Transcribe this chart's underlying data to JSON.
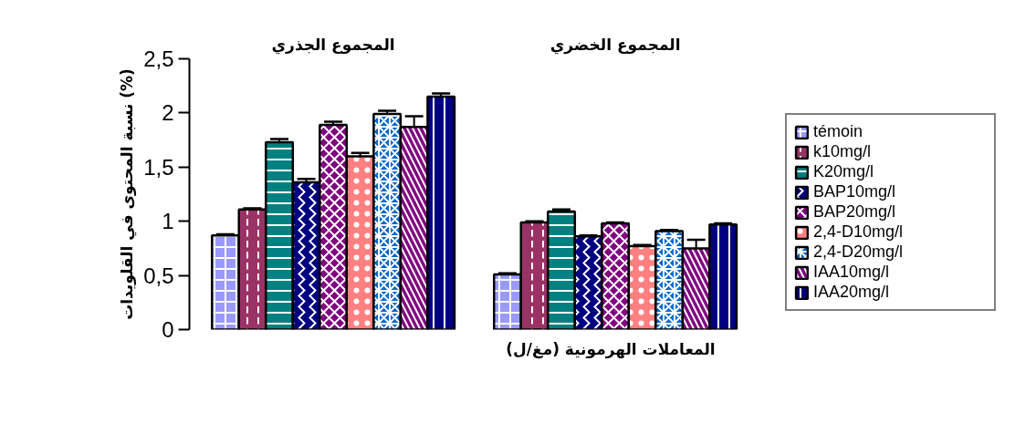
{
  "chart_data": {
    "type": "bar",
    "ylabel": "نسبة المحتوى في القلويدات (%)",
    "xlabel": "المعاملات الهرمونية (مغ/ل)",
    "categories": [
      "المجموع الجذري",
      "المجموع الخضري"
    ],
    "series": [
      {
        "name": "témoin",
        "color": "#9999ff",
        "values": [
          0.87,
          0.51
        ],
        "errors": [
          0.01,
          0.01
        ]
      },
      {
        "name": "k10mg/l",
        "color": "#993366",
        "values": [
          1.11,
          0.99
        ],
        "errors": [
          0.01,
          0.01
        ]
      },
      {
        "name": "K20mg/l",
        "color": "#008080",
        "values": [
          1.73,
          1.09
        ],
        "errors": [
          0.03,
          0.02
        ]
      },
      {
        "name": "BAP10mg/l",
        "color": "#000080",
        "values": [
          1.36,
          0.86
        ],
        "errors": [
          0.03,
          0.01
        ]
      },
      {
        "name": "BAP20mg/l",
        "color": "#800080",
        "values": [
          1.89,
          0.98
        ],
        "errors": [
          0.03,
          0.01
        ]
      },
      {
        "name": "2,4-D10mg/l",
        "color": "#ff8080",
        "values": [
          1.6,
          0.77
        ],
        "errors": [
          0.03,
          0.01
        ]
      },
      {
        "name": "2,4-D20mg/l",
        "color": "#0066cc",
        "values": [
          1.99,
          0.91
        ],
        "errors": [
          0.03,
          0.01
        ]
      },
      {
        "name": "IAA10mg/l",
        "color": "#800080",
        "values": [
          1.87,
          0.75
        ],
        "errors": [
          0.1,
          0.08
        ]
      },
      {
        "name": "IAA20mg/l",
        "color": "#000080",
        "values": [
          2.15,
          0.97
        ],
        "errors": [
          0.03,
          0.01
        ]
      }
    ],
    "ylim": [
      0,
      2.5
    ],
    "yticks": [
      0,
      {
        "value": 0.5,
        "label": "0,5"
      },
      1,
      {
        "value": 1.5,
        "label": "1,5"
      },
      2,
      {
        "value": 2.5,
        "label": "2,5"
      }
    ],
    "tick_labels": "y",
    "grid": false,
    "legend": "right"
  }
}
